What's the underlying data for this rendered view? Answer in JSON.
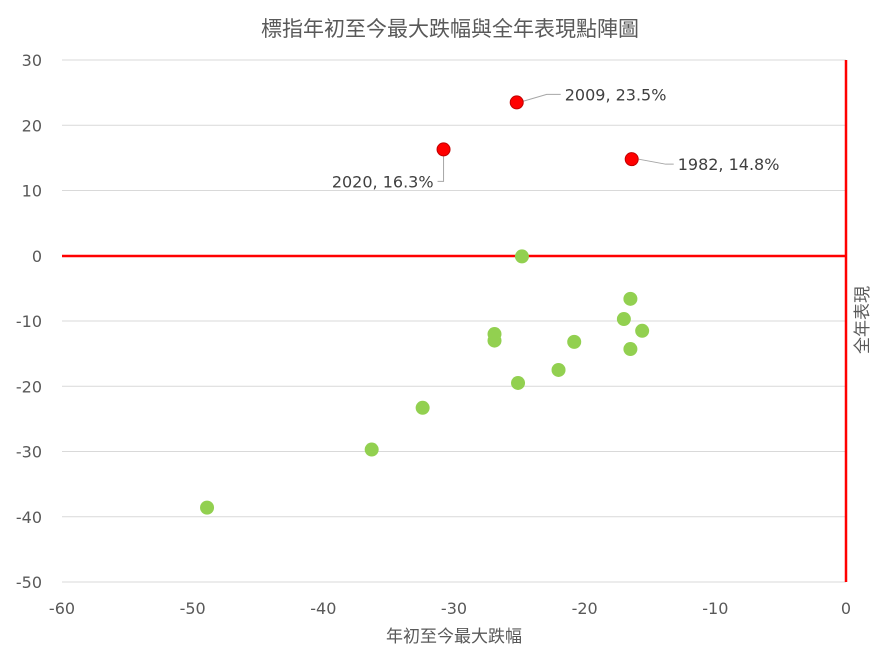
{
  "chart_data": {
    "type": "scatter",
    "title": "標指年初至今最大跌幅與全年表現點陣圖",
    "xlabel": "年初至今最大跌幅",
    "ylabel": "全年表現",
    "xlim": [
      -60,
      0
    ],
    "ylim": [
      -50,
      30
    ],
    "xticks": [
      "-60",
      "-50",
      "-40",
      "-30",
      "-20",
      "-10",
      "0"
    ],
    "yticks": [
      "30",
      "20",
      "10",
      "0",
      "-10",
      "-20",
      "-30",
      "-40",
      "-50"
    ],
    "grid": true,
    "legend": "none",
    "colors": {
      "highlight": "#ff0000",
      "normal": "#92d050",
      "axis": "#ff0000",
      "grid": "#d9d9d9"
    },
    "highlighted": [
      {
        "x": -25.2,
        "y": 23.5,
        "label": "2009, 23.5%"
      },
      {
        "x": -30.8,
        "y": 16.3,
        "label": "2020, 16.3%"
      },
      {
        "x": -16.4,
        "y": 14.8,
        "label": "1982, 14.8%"
      }
    ],
    "points": [
      {
        "x": -24.8,
        "y": -0.1
      },
      {
        "x": -16.5,
        "y": -6.6
      },
      {
        "x": -17.0,
        "y": -9.7
      },
      {
        "x": -15.6,
        "y": -11.5
      },
      {
        "x": -16.5,
        "y": -14.3
      },
      {
        "x": -26.9,
        "y": -12.0
      },
      {
        "x": -26.9,
        "y": -13.0
      },
      {
        "x": -20.8,
        "y": -13.2
      },
      {
        "x": -22.0,
        "y": -17.5
      },
      {
        "x": -25.1,
        "y": -19.5
      },
      {
        "x": -32.4,
        "y": -23.3
      },
      {
        "x": -36.3,
        "y": -29.7
      },
      {
        "x": -48.9,
        "y": -38.6
      }
    ]
  }
}
